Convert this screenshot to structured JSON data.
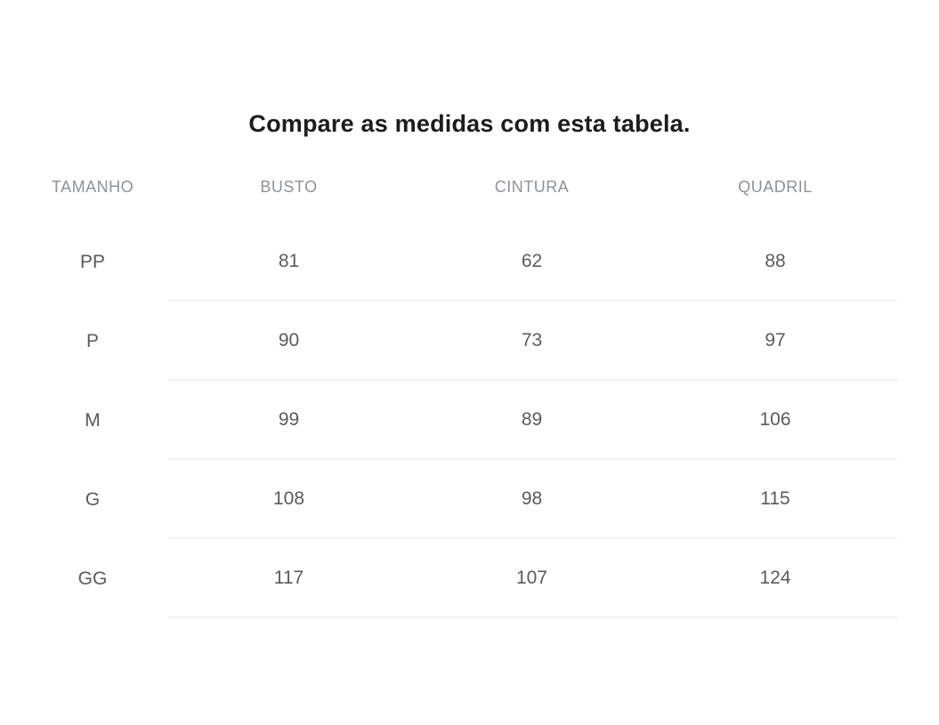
{
  "title": "Compare as medidas com esta tabela.",
  "table": {
    "headers": [
      "TAMANHO",
      "BUSTO",
      "CINTURA",
      "QUADRIL"
    ],
    "rows": [
      {
        "size": "PP",
        "busto": "81",
        "cintura": "62",
        "quadril": "88"
      },
      {
        "size": "P",
        "busto": "90",
        "cintura": "73",
        "quadril": "97"
      },
      {
        "size": "M",
        "busto": "99",
        "cintura": "89",
        "quadril": "106"
      },
      {
        "size": "G",
        "busto": "108",
        "cintura": "98",
        "quadril": "115"
      },
      {
        "size": "GG",
        "busto": "117",
        "cintura": "107",
        "quadril": "124"
      }
    ]
  },
  "colors": {
    "title": "#1c1c1e",
    "header_text": "#8e9297",
    "cell_text": "#595b5e",
    "divider": "#f1f1f2",
    "background": "#ffffff"
  }
}
